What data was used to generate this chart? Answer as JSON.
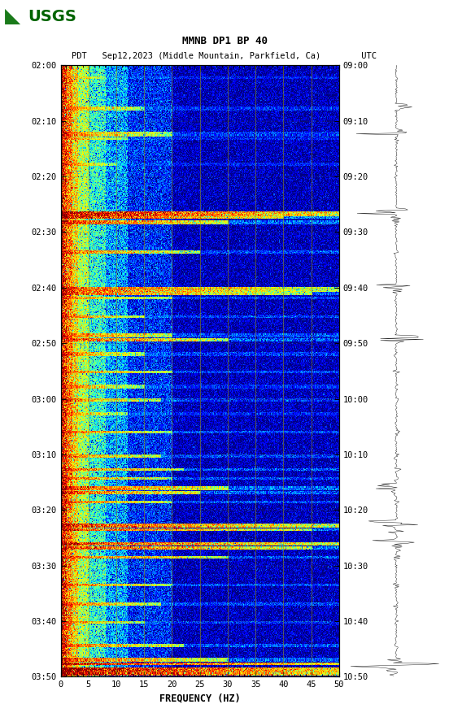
{
  "title_line1": "MMNB DP1 BP 40",
  "title_line2": "PDT   Sep12,2023 (Middle Mountain, Parkfield, Ca)        UTC",
  "xlabel": "FREQUENCY (HZ)",
  "freq_min": 0,
  "freq_max": 50,
  "freq_ticks": [
    0,
    5,
    10,
    15,
    20,
    25,
    30,
    35,
    40,
    45,
    50
  ],
  "left_time_labels": [
    "02:00",
    "02:10",
    "02:20",
    "02:30",
    "02:40",
    "02:50",
    "03:00",
    "03:10",
    "03:20",
    "03:30",
    "03:40",
    "03:50"
  ],
  "right_time_labels": [
    "09:00",
    "09:10",
    "09:20",
    "09:30",
    "09:40",
    "09:50",
    "10:00",
    "10:10",
    "10:20",
    "10:30",
    "10:40",
    "10:50"
  ],
  "n_time_steps": 660,
  "n_freq_steps": 500,
  "figure_bg": "#ffffff",
  "usgs_color": "#006400",
  "grid_color": "#999900",
  "grid_alpha": 0.55,
  "freq_grid_lines": [
    5,
    10,
    15,
    20,
    25,
    30,
    35,
    40,
    45
  ]
}
